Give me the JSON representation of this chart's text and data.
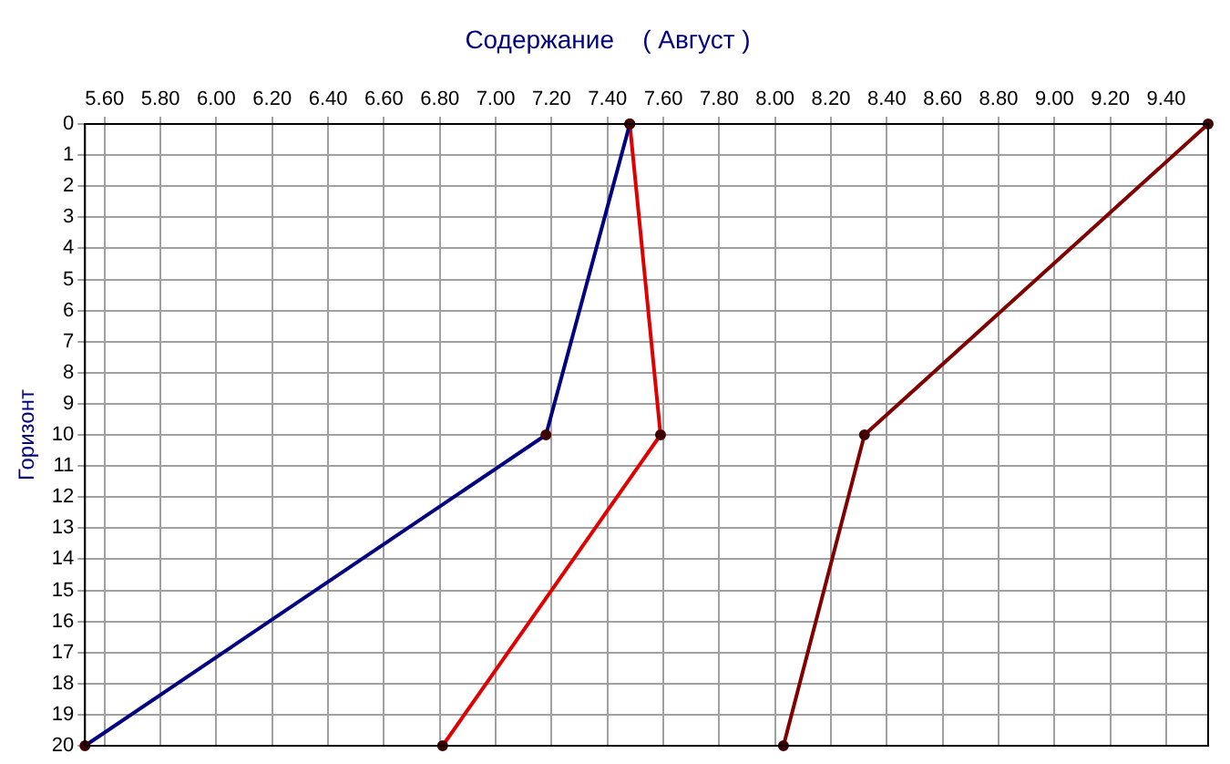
{
  "chart_data": {
    "type": "line",
    "title": "Содержание    ( Август )",
    "ylabel": "Горизонт",
    "xlim": [
      5.53,
      9.55
    ],
    "xticks": [
      {
        "value": 5.6,
        "label": "5.60"
      },
      {
        "value": 5.8,
        "label": "5.80"
      },
      {
        "value": 6.0,
        "label": "6.00"
      },
      {
        "value": 6.2,
        "label": "6.20"
      },
      {
        "value": 6.4,
        "label": "6.40"
      },
      {
        "value": 6.6,
        "label": "6.60"
      },
      {
        "value": 6.8,
        "label": "6.80"
      },
      {
        "value": 7.0,
        "label": "7.00"
      },
      {
        "value": 7.2,
        "label": "7.20"
      },
      {
        "value": 7.4,
        "label": "7.40"
      },
      {
        "value": 7.6,
        "label": "7.60"
      },
      {
        "value": 7.8,
        "label": "7.80"
      },
      {
        "value": 8.0,
        "label": "8.00"
      },
      {
        "value": 8.2,
        "label": "8.20"
      },
      {
        "value": 8.4,
        "label": "8.40"
      },
      {
        "value": 8.6,
        "label": "8.60"
      },
      {
        "value": 8.8,
        "label": "8.80"
      },
      {
        "value": 9.0,
        "label": "9.00"
      },
      {
        "value": 9.2,
        "label": "9.20"
      },
      {
        "value": 9.4,
        "label": "9.40"
      }
    ],
    "ylim": [
      20,
      0
    ],
    "yticks": [
      0,
      1,
      2,
      3,
      4,
      5,
      6,
      7,
      8,
      9,
      10,
      11,
      12,
      13,
      14,
      15,
      16,
      17,
      18,
      19,
      20
    ],
    "grid": true,
    "marker": "circle",
    "line_style": "solid",
    "series": [
      {
        "color": "#000080",
        "x": [
          7.48,
          7.18,
          5.53
        ],
        "values": [
          0,
          10,
          20
        ]
      },
      {
        "color": "#e00000",
        "x": [
          7.48,
          7.59,
          6.81
        ],
        "values": [
          0,
          10,
          20
        ]
      },
      {
        "color": "#800000",
        "x": [
          9.55,
          8.32,
          8.03
        ],
        "values": [
          0,
          10,
          20
        ]
      }
    ]
  }
}
